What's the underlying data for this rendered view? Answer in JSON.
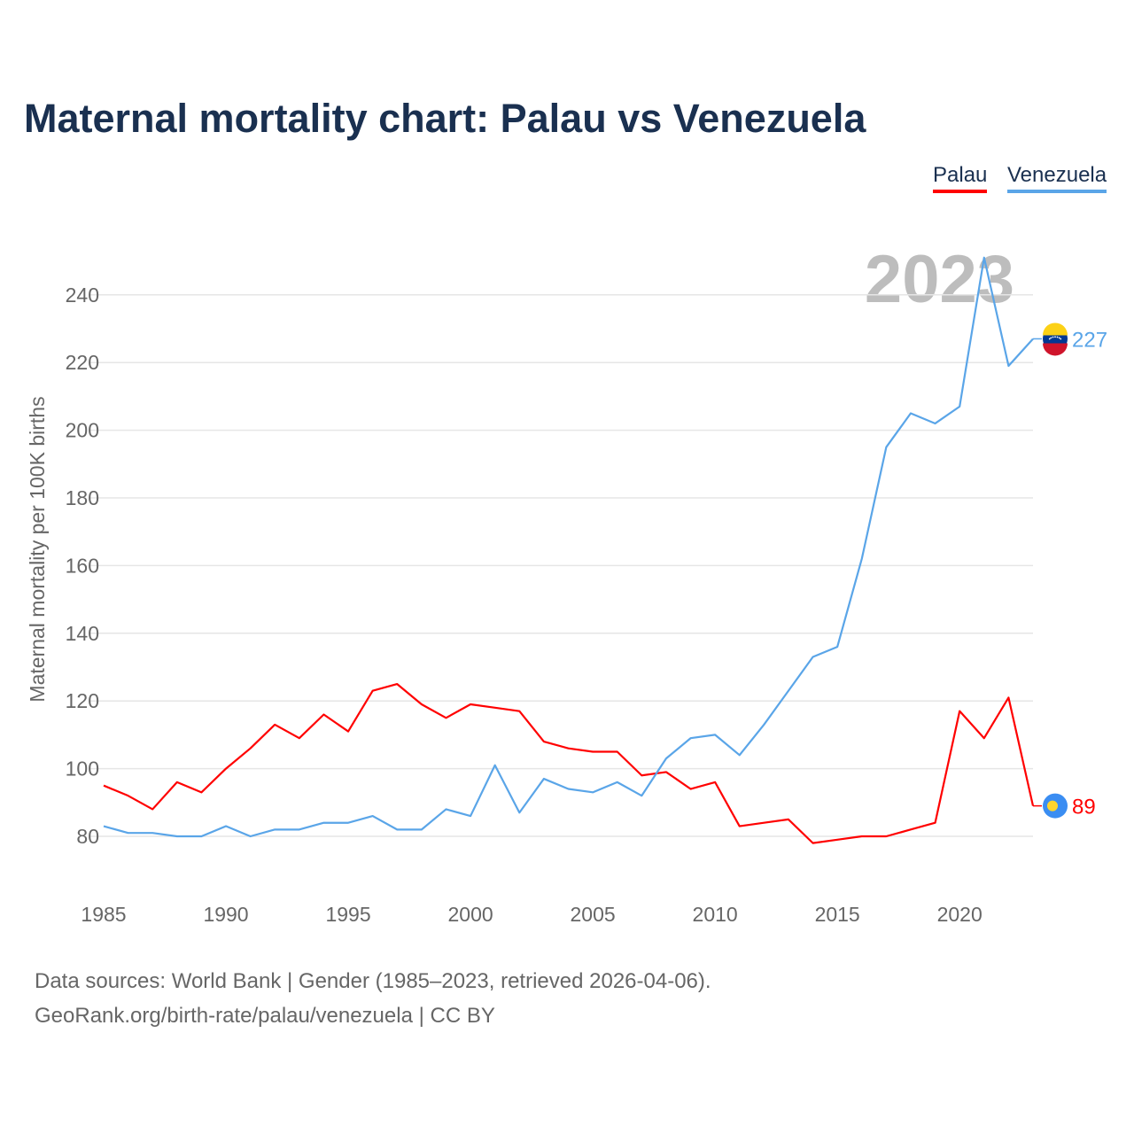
{
  "chart_data": {
    "type": "line",
    "title": "Maternal mortality chart: Palau vs Venezuela",
    "xlabel": "",
    "ylabel": "Maternal mortality per 100K births",
    "xlim": [
      1985,
      2023
    ],
    "ylim": [
      65,
      255
    ],
    "x_ticks": [
      1985,
      1990,
      1995,
      2000,
      2005,
      2010,
      2015,
      2020
    ],
    "y_ticks": [
      80,
      100,
      120,
      140,
      160,
      180,
      200,
      220,
      240
    ],
    "grid": true,
    "legend_position": "top-right",
    "year_watermark": "2023",
    "x": [
      1985,
      1986,
      1987,
      1988,
      1989,
      1990,
      1991,
      1992,
      1993,
      1994,
      1995,
      1996,
      1997,
      1998,
      1999,
      2000,
      2001,
      2002,
      2003,
      2004,
      2005,
      2006,
      2007,
      2008,
      2009,
      2010,
      2011,
      2012,
      2013,
      2014,
      2015,
      2016,
      2017,
      2018,
      2019,
      2020,
      2021,
      2022,
      2023
    ],
    "series": [
      {
        "name": "Palau",
        "color": "#ff0000",
        "end_label": "89",
        "values": [
          95,
          92,
          88,
          96,
          93,
          100,
          106,
          113,
          109,
          116,
          111,
          123,
          125,
          119,
          115,
          119,
          118,
          117,
          108,
          106,
          105,
          105,
          98,
          99,
          94,
          96,
          83,
          84,
          85,
          78,
          79,
          80,
          80,
          82,
          84,
          117,
          109,
          121,
          89
        ]
      },
      {
        "name": "Venezuela",
        "color": "#5aa5e8",
        "end_label": "227",
        "values": [
          83,
          81,
          81,
          80,
          80,
          83,
          80,
          82,
          82,
          84,
          84,
          86,
          82,
          82,
          88,
          86,
          101,
          87,
          97,
          94,
          93,
          96,
          92,
          103,
          109,
          110,
          104,
          113,
          123,
          133,
          136,
          162,
          195,
          205,
          202,
          207,
          251,
          219,
          227
        ]
      }
    ]
  },
  "footer": {
    "line1": "Data sources: World Bank | Gender (1985–2023, retrieved 2026-04-06).",
    "line2": "GeoRank.org/birth-rate/palau/venezuela | CC BY"
  }
}
